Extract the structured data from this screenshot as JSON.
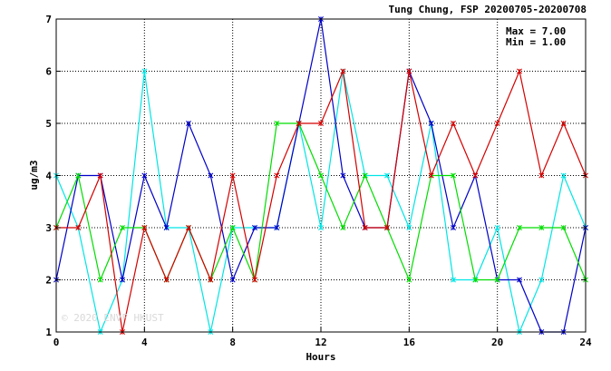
{
  "chart_data": {
    "type": "line",
    "title": "Tung Chung, FSP 20200705-20200708",
    "xlabel": "Hours",
    "ylabel": "ug/m3",
    "xlim": [
      0,
      24
    ],
    "ylim": [
      1,
      7
    ],
    "xticks": [
      0,
      4,
      8,
      12,
      16,
      20,
      24
    ],
    "yticks": [
      1,
      2,
      3,
      4,
      5,
      6,
      7
    ],
    "grid": true,
    "stats": {
      "max_label": "Max = 7.00",
      "min_label": "Min = 1.00"
    },
    "watermark": "© 2020 ENVF HKUST",
    "x": [
      0,
      1,
      2,
      3,
      4,
      5,
      6,
      7,
      8,
      9,
      10,
      11,
      12,
      13,
      14,
      15,
      16,
      17,
      18,
      19,
      20,
      21,
      22,
      23,
      24
    ],
    "series": [
      {
        "color": "#00e5e5",
        "values": [
          4,
          3,
          1,
          2,
          6,
          3,
          3,
          1,
          3,
          3,
          3,
          5,
          3,
          6,
          4,
          4,
          3,
          5,
          2,
          2,
          3,
          1,
          2,
          4,
          3
        ]
      },
      {
        "color": "#0000c8",
        "values": [
          2,
          4,
          4,
          2,
          4,
          3,
          5,
          4,
          2,
          3,
          3,
          5,
          7,
          4,
          3,
          3,
          6,
          5,
          3,
          4,
          2,
          2,
          1,
          1,
          3
        ]
      },
      {
        "color": "#00dd00",
        "values": [
          3,
          4,
          2,
          3,
          3,
          2,
          3,
          2,
          3,
          2,
          5,
          5,
          4,
          3,
          4,
          3,
          2,
          4,
          4,
          2,
          2,
          3,
          3,
          3,
          2
        ]
      },
      {
        "color": "#d40000",
        "values": [
          3,
          3,
          4,
          1,
          3,
          2,
          3,
          2,
          4,
          2,
          4,
          5,
          5,
          6,
          3,
          3,
          6,
          4,
          5,
          4,
          5,
          6,
          4,
          5,
          4
        ]
      }
    ]
  }
}
